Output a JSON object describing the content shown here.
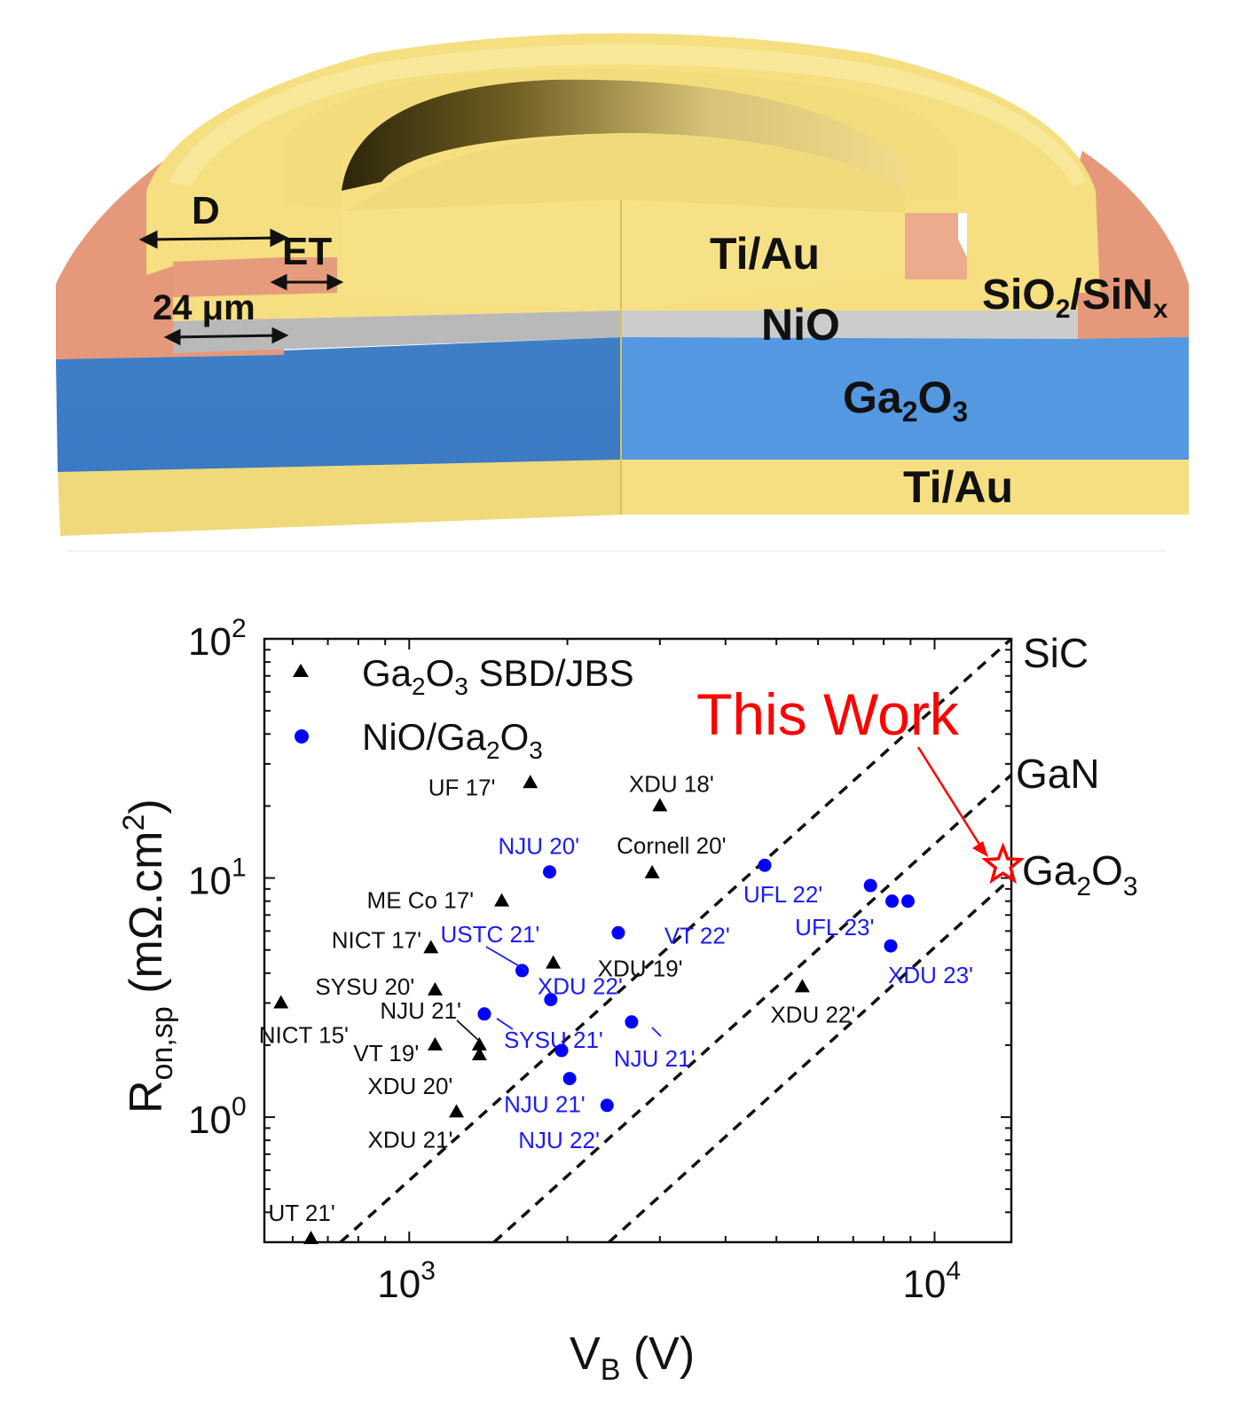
{
  "diagram": {
    "labels": {
      "d": "D",
      "et": "ET",
      "width": "24 μm",
      "top_metal": "Ti/Au",
      "nio": "NiO",
      "passivation_main": "SiO",
      "passivation_sub1": "2",
      "passivation_mid": "/SiN",
      "passivation_sub2": "x",
      "ga2o3_a": "Ga",
      "ga2o3_s1": "2",
      "ga2o3_b": "O",
      "ga2o3_s2": "3",
      "bottom_metal": "Ti/Au"
    },
    "colors": {
      "gold": "#f5df80",
      "gold_dark": "#e8cc5c",
      "salmon": "#e9a07c",
      "nio_gray": "#c8c8c8",
      "ga2o3_blue": "#4f8fd6"
    }
  },
  "chart_data": {
    "type": "scatter",
    "x_scale": "log",
    "y_scale": "log",
    "xlim": [
      530,
      14000
    ],
    "ylim": [
      0.3,
      100
    ],
    "xlabel": "V",
    "xlabel_sub": "B",
    "xlabel_unit": " (V)",
    "ylabel_main": "R",
    "ylabel_sub": "on,sp",
    "ylabel_unit": " (mΩ.cm",
    "ylabel_sup": "2",
    "ylabel_close": ")",
    "x_ticks": [
      {
        "base": "10",
        "exp": "3",
        "value": 1000
      },
      {
        "base": "10",
        "exp": "4",
        "value": 10000
      }
    ],
    "y_ticks": [
      {
        "base": "10",
        "exp": "0",
        "value": 1
      },
      {
        "base": "10",
        "exp": "1",
        "value": 10
      },
      {
        "base": "10",
        "exp": "2",
        "value": 100
      }
    ],
    "legend": [
      {
        "marker": "triangle",
        "color": "#000000",
        "text_a": "Ga",
        "sub1": "2",
        "text_b": "O",
        "sub2": "3",
        "text_c": " SBD/JBS"
      },
      {
        "marker": "circle",
        "color": "#0000ff",
        "text_a": "NiO/Ga",
        "sub1": "2",
        "text_b": "O",
        "sub2": "3",
        "text_c": ""
      }
    ],
    "limit_lines": [
      {
        "name": "SiC",
        "points": [
          [
            740,
            0.3
          ],
          [
            14000,
            100
          ]
        ]
      },
      {
        "name": "GaN",
        "points": [
          [
            1450,
            0.3
          ],
          [
            14000,
            27
          ]
        ]
      },
      {
        "name": "Ga2O3",
        "points": [
          [
            2400,
            0.3
          ],
          [
            14000,
            10
          ]
        ]
      }
    ],
    "limit_labels": {
      "sic": "SiC",
      "gan": "GaN",
      "ga2o3_a": "Ga",
      "ga2o3_s1": "2",
      "ga2o3_b": "O",
      "ga2o3_s2": "3"
    },
    "this_work": {
      "label": "This Work",
      "x": 13500,
      "y": 11.3,
      "color": "#ff0000"
    },
    "series": [
      {
        "name": "Ga2O3 SBD/JBS",
        "marker": "triangle",
        "color": "#000000",
        "points": [
          {
            "x": 1700,
            "y": 25,
            "label": "UF 17'"
          },
          {
            "x": 3000,
            "y": 20,
            "label": "XDU 18'"
          },
          {
            "x": 2900,
            "y": 10.5,
            "label": "Cornell 20'"
          },
          {
            "x": 1500,
            "y": 8,
            "label": "ME Co 17'"
          },
          {
            "x": 1100,
            "y": 5.1,
            "label": "NICT 17'"
          },
          {
            "x": 1880,
            "y": 4.4,
            "label": "XDU 19'"
          },
          {
            "x": 1120,
            "y": 3.4,
            "label": "SYSU 20'"
          },
          {
            "x": 570,
            "y": 3.0,
            "label": "NICT 15'"
          },
          {
            "x": 1120,
            "y": 2.0,
            "label": "VT 19'"
          },
          {
            "x": 1360,
            "y": 2.0,
            "label": "NJU 21'"
          },
          {
            "x": 1360,
            "y": 1.82,
            "label": "XDU 20'"
          },
          {
            "x": 1230,
            "y": 1.05,
            "label": "XDU 21'"
          },
          {
            "x": 5600,
            "y": 3.5,
            "label": "XDU 22'"
          },
          {
            "x": 650,
            "y": 0.31,
            "label": "UT 21'"
          }
        ]
      },
      {
        "name": "NiO/Ga2O3",
        "marker": "circle",
        "color": "#0000ff",
        "points": [
          {
            "x": 1850,
            "y": 10.6,
            "label": "NJU 20'"
          },
          {
            "x": 4750,
            "y": 11.3,
            "label": "UFL 22'"
          },
          {
            "x": 1640,
            "y": 4.1,
            "label": "USTC 21'"
          },
          {
            "x": 2500,
            "y": 5.9,
            "label": "VT 22'"
          },
          {
            "x": 7550,
            "y": 9.3,
            "label": "UFL 23'"
          },
          {
            "x": 8300,
            "y": 8.0,
            "label": ""
          },
          {
            "x": 8900,
            "y": 8.0,
            "label": ""
          },
          {
            "x": 8250,
            "y": 5.2,
            "label": "XDU 23'"
          },
          {
            "x": 1860,
            "y": 3.1,
            "label": "XDU 22'"
          },
          {
            "x": 1390,
            "y": 2.7,
            "label": "SYSU 21'"
          },
          {
            "x": 2650,
            "y": 2.5,
            "label": "NJU 21'"
          },
          {
            "x": 1950,
            "y": 1.9,
            "label": ""
          },
          {
            "x": 2020,
            "y": 1.45,
            "label": "NJU 21'"
          },
          {
            "x": 2380,
            "y": 1.12,
            "label": "NJU 22'"
          }
        ]
      }
    ]
  }
}
